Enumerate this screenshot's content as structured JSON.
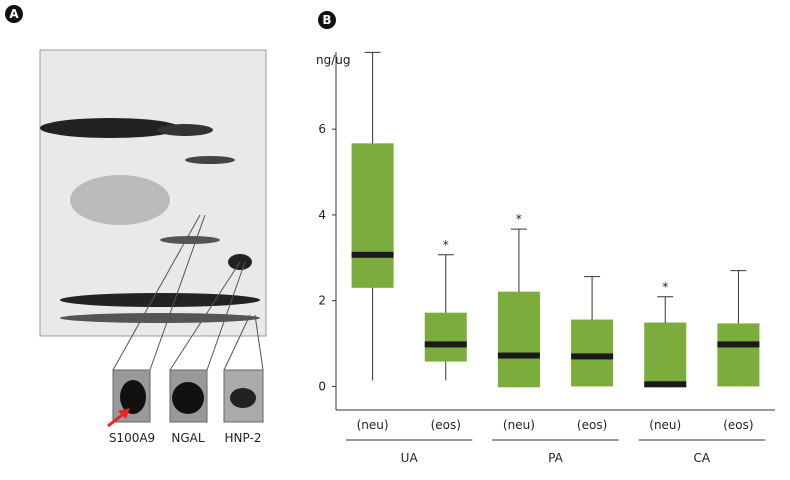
{
  "panel_a": {
    "label": "A",
    "insets": [
      "S100A9",
      "NGAL",
      "HNP-2"
    ]
  },
  "chart_data": {
    "type": "box",
    "panel_label": "B",
    "y_label": "ng/ug",
    "categories": [
      "(neu)",
      "(eos)",
      "(neu)",
      "(eos)",
      "(neu)",
      "(eos)"
    ],
    "groups": [
      "UA",
      "PA",
      "CA"
    ],
    "low": [
      0.14,
      0.14,
      -0.02,
      0,
      -0.02,
      0
    ],
    "q1": [
      2.3,
      0.58,
      -0.02,
      0,
      -0.02,
      0
    ],
    "median": [
      3.07,
      0.98,
      0.72,
      0.7,
      0.05,
      0.98
    ],
    "q3": [
      5.67,
      1.72,
      2.21,
      1.56,
      1.49,
      1.47
    ],
    "high": [
      7.79,
      3.07,
      3.67,
      2.56,
      2.09,
      2.7
    ],
    "marks": [
      null,
      "*",
      "*",
      null,
      "*",
      null
    ],
    "color": "#7cac3c",
    "median_color": "#1a1a1a",
    "ylim": [
      -0.55,
      7.8
    ],
    "yticks": [
      0,
      2,
      4,
      6
    ]
  }
}
